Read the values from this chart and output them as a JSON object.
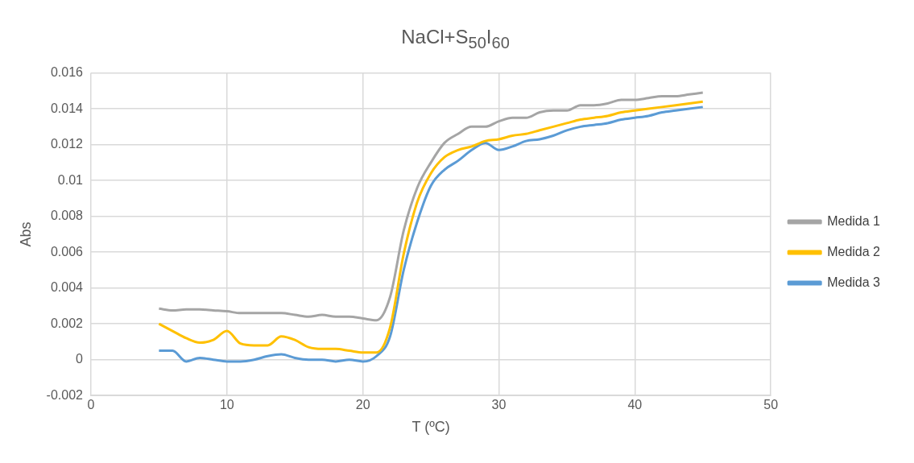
{
  "chart_data": {
    "type": "line",
    "title": "NaCl+S$_{50}$I$_{60}$",
    "xlabel": "T (ºC)",
    "ylabel": "Abs",
    "x": [
      5,
      6,
      7,
      8,
      9,
      10,
      11,
      12,
      13,
      14,
      15,
      16,
      17,
      18,
      19,
      20,
      21,
      22,
      23,
      24,
      25,
      26,
      27,
      28,
      29,
      30,
      31,
      32,
      33,
      34,
      35,
      36,
      37,
      38,
      39,
      40,
      41,
      42,
      43,
      44,
      45
    ],
    "xlim": [
      0,
      50
    ],
    "xticks": [
      0,
      10,
      20,
      30,
      40,
      50
    ],
    "ylim": [
      -0.002,
      0.016
    ],
    "yticks": [
      -0.002,
      0,
      0.002,
      0.004,
      0.006,
      0.008,
      0.01,
      0.012,
      0.014,
      0.016
    ],
    "grid": true,
    "legend": "right",
    "marker": "none",
    "line_style": "solid",
    "series": [
      {
        "name": "Medida 1",
        "color": "#a5a5a5",
        "values": [
          0.00285,
          0.00275,
          0.0028,
          0.0028,
          0.00275,
          0.0027,
          0.0026,
          0.0026,
          0.0026,
          0.0026,
          0.0025,
          0.0024,
          0.0025,
          0.0024,
          0.0024,
          0.0023,
          0.0022,
          0.0035,
          0.0072,
          0.0096,
          0.011,
          0.0121,
          0.0126,
          0.013,
          0.013,
          0.0133,
          0.0135,
          0.0135,
          0.0138,
          0.0139,
          0.0139,
          0.0142,
          0.0142,
          0.0143,
          0.0145,
          0.0145,
          0.0146,
          0.0147,
          0.0147,
          0.0148,
          0.0149
        ]
      },
      {
        "name": "Medida 2",
        "color": "#ffc000",
        "values": [
          0.002,
          0.0016,
          0.0012,
          0.00095,
          0.0011,
          0.0016,
          0.0009,
          0.0008,
          0.0008,
          0.0013,
          0.0011,
          0.0007,
          0.0006,
          0.0006,
          0.0005,
          0.0004,
          0.0004,
          0.0018,
          0.0059,
          0.0088,
          0.0104,
          0.0113,
          0.0117,
          0.0119,
          0.0122,
          0.0123,
          0.0125,
          0.0126,
          0.0128,
          0.013,
          0.0132,
          0.0134,
          0.0135,
          0.0136,
          0.0138,
          0.0139,
          0.014,
          0.0141,
          0.0142,
          0.0143,
          0.0144
        ]
      },
      {
        "name": "Medida 3",
        "color": "#5b9bd5",
        "values": [
          0.0005,
          0.0005,
          -0.0001,
          0.0001,
          0,
          -0.0001,
          -0.0001,
          0,
          0.0002,
          0.0003,
          0.0001,
          0,
          0,
          -0.0001,
          0,
          -0.0001,
          0.0002,
          0.0013,
          0.005,
          0.0077,
          0.0097,
          0.0106,
          0.0111,
          0.0117,
          0.0121,
          0.0117,
          0.0119,
          0.0122,
          0.0123,
          0.0125,
          0.0128,
          0.013,
          0.0131,
          0.0132,
          0.0134,
          0.0135,
          0.0136,
          0.0138,
          0.0139,
          0.014,
          0.0141
        ]
      }
    ]
  }
}
